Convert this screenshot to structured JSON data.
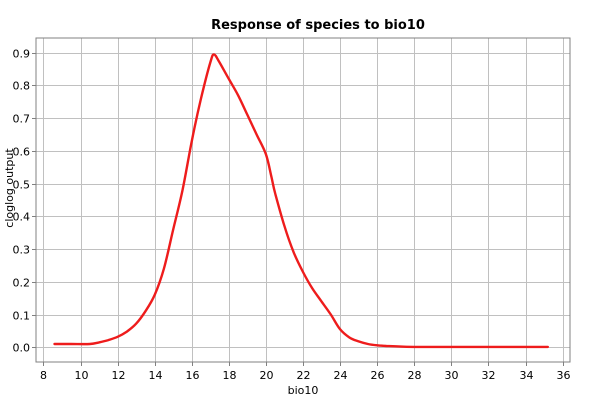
{
  "chart_data": {
    "type": "line",
    "title": "Response of species to bio10",
    "xlabel": "bio10",
    "ylabel": "cloglog output",
    "xlim": [
      7.6,
      36.4
    ],
    "ylim": [
      -0.045,
      0.945
    ],
    "x_ticks": [
      8,
      10,
      12,
      14,
      16,
      18,
      20,
      22,
      24,
      26,
      28,
      30,
      32,
      34,
      36
    ],
    "y_ticks": [
      0.0,
      0.1,
      0.2,
      0.3,
      0.4,
      0.5,
      0.6,
      0.7,
      0.8,
      0.9
    ],
    "x_tick_labels": [
      "8",
      "10",
      "12",
      "14",
      "16",
      "18",
      "20",
      "22",
      "24",
      "26",
      "28",
      "30",
      "32",
      "34",
      "36"
    ],
    "y_tick_labels": [
      "0.0",
      "0.1",
      "0.2",
      "0.3",
      "0.4",
      "0.5",
      "0.6",
      "0.7",
      "0.8",
      "0.9"
    ],
    "grid": true,
    "series": [
      {
        "color": "#ee1c1c",
        "x": [
          8.6,
          9.5,
          10.5,
          11.0,
          11.5,
          12.0,
          12.5,
          13.0,
          13.5,
          14.0,
          14.5,
          15.0,
          15.5,
          16.0,
          16.5,
          17.0,
          17.2,
          17.5,
          18.0,
          18.5,
          19.0,
          19.5,
          20.0,
          20.3,
          20.5,
          21.0,
          21.5,
          22.0,
          22.5,
          23.0,
          23.5,
          24.0,
          24.5,
          25.0,
          25.5,
          26.0,
          26.5,
          27.0,
          28.0,
          30.0,
          32.0,
          35.2
        ],
        "y": [
          0.01,
          0.01,
          0.01,
          0.015,
          0.022,
          0.032,
          0.048,
          0.072,
          0.11,
          0.16,
          0.24,
          0.36,
          0.48,
          0.63,
          0.76,
          0.87,
          0.895,
          0.87,
          0.82,
          0.77,
          0.71,
          0.65,
          0.59,
          0.52,
          0.47,
          0.37,
          0.29,
          0.23,
          0.18,
          0.14,
          0.1,
          0.055,
          0.03,
          0.018,
          0.01,
          0.006,
          0.004,
          0.003,
          0.001,
          0.001,
          0.001,
          0.001
        ]
      }
    ]
  }
}
